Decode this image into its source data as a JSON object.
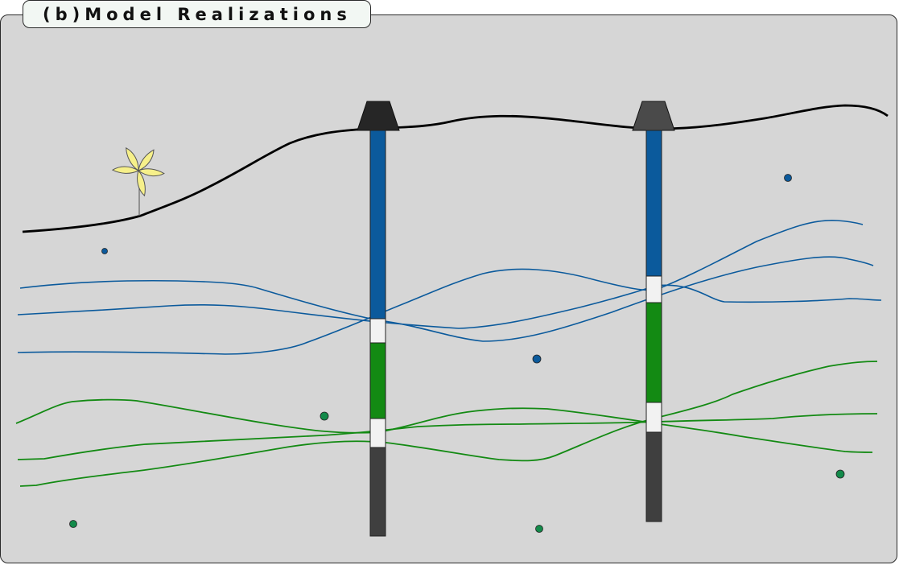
{
  "panel": {
    "title": "(b)Model Realizations"
  },
  "colors": {
    "panel_bg": "#d6d6d6",
    "blue": "#0b5a9c",
    "green": "#138a13",
    "dark": "#3f3f3f",
    "wellhead_left": "#262626",
    "wellhead_right": "#4a4a4a",
    "surface": "#000000",
    "flower": "#f6f08a"
  },
  "icons": [
    "wellhead-icon",
    "flower-icon"
  ]
}
